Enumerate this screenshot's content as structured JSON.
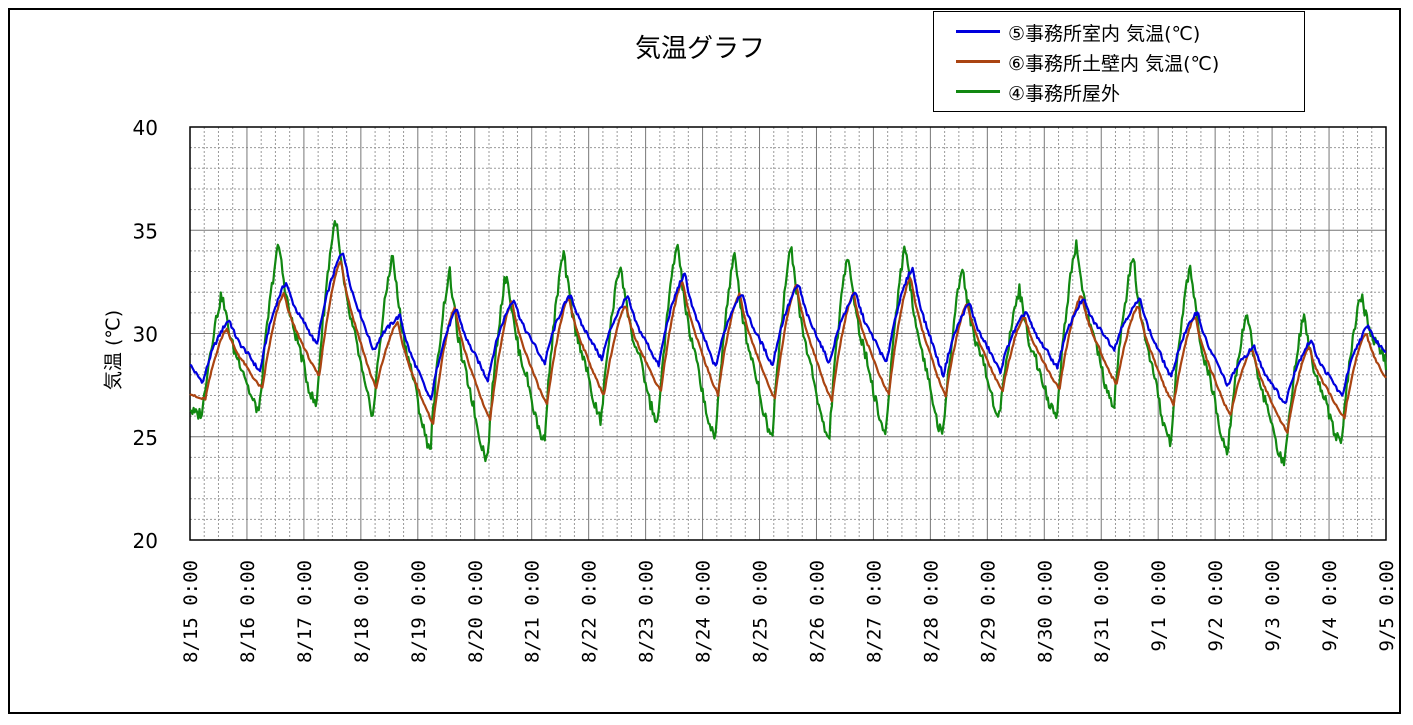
{
  "chart_data": {
    "type": "line",
    "title": "気温グラフ",
    "ylabel": "気温 (℃)",
    "ylim": [
      20,
      40
    ],
    "yticks": [
      20,
      25,
      30,
      35,
      40
    ],
    "grid": true,
    "legend_position": "top-right",
    "x_start_day": "8/15",
    "x_end_day": "9/5",
    "x": [
      "8/15 0:00",
      "8/16 0:00",
      "8/17 0:00",
      "8/18 0:00",
      "8/19 0:00",
      "8/20 0:00",
      "8/21 0:00",
      "8/22 0:00",
      "8/23 0:00",
      "8/24 0:00",
      "8/25 0:00",
      "8/26 0:00",
      "8/27 0:00",
      "8/28 0:00",
      "8/29 0:00",
      "8/30 0:00",
      "8/31 0:00",
      "9/1 0:00",
      "9/2 0:00",
      "9/3 0:00",
      "9/4 0:00",
      "9/5 0:00"
    ],
    "series": [
      {
        "name": "⑤事務所室内 気温(℃)",
        "color": "#0000dd",
        "daily_min": [
          27.7,
          28.2,
          29.5,
          29.2,
          26.8,
          27.8,
          28.6,
          28.8,
          28.5,
          28.4,
          28.5,
          28.6,
          28.6,
          28.0,
          28.2,
          28.4,
          29.3,
          27.9,
          27.5,
          26.6,
          27.0
        ],
        "daily_max": [
          30.6,
          32.4,
          33.9,
          30.8,
          31.1,
          31.6,
          31.8,
          31.7,
          32.8,
          31.9,
          32.3,
          31.9,
          33.1,
          31.4,
          31.0,
          31.6,
          31.6,
          31.0,
          29.3,
          29.6,
          30.3
        ],
        "start_value": 28.5,
        "end_value": 29.1
      },
      {
        "name": "⑥事務所土壁内 気温(℃)",
        "color": "#aa4411",
        "daily_min": [
          26.8,
          27.3,
          27.9,
          27.3,
          25.6,
          25.8,
          26.5,
          27.0,
          27.2,
          27.0,
          26.8,
          26.7,
          27.0,
          26.9,
          27.2,
          27.3,
          27.5,
          26.5,
          26.0,
          25.2,
          25.9
        ],
        "daily_max": [
          30.2,
          31.9,
          33.5,
          30.5,
          31.2,
          31.5,
          31.7,
          31.3,
          32.5,
          31.9,
          32.3,
          31.9,
          32.7,
          31.4,
          30.8,
          31.8,
          31.3,
          30.8,
          29.2,
          29.3,
          30.0
        ],
        "start_value": 27.1,
        "end_value": 27.8
      },
      {
        "name": "④事務所屋外",
        "color": "#118811",
        "daily_min": [
          26.1,
          26.1,
          26.3,
          25.9,
          24.2,
          23.7,
          24.6,
          25.6,
          25.5,
          24.6,
          24.8,
          24.6,
          24.9,
          24.8,
          25.9,
          25.8,
          26.2,
          24.5,
          24.2,
          23.5,
          24.5
        ],
        "daily_max": [
          31.7,
          34.1,
          35.4,
          33.6,
          32.8,
          32.8,
          33.7,
          33.2,
          34.2,
          33.6,
          34.0,
          33.7,
          34.1,
          33.0,
          32.0,
          34.2,
          33.5,
          33.1,
          30.9,
          30.7,
          31.7
        ],
        "start_value": 26.4,
        "end_value": 28.5
      }
    ]
  }
}
